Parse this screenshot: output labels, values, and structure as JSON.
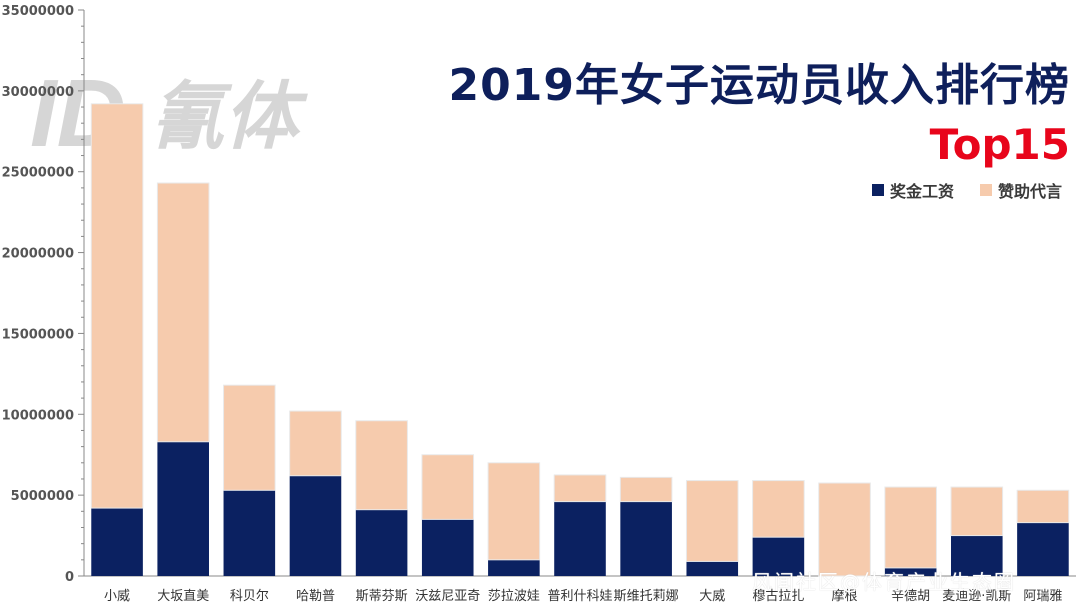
{
  "page": {
    "watermark_logo_text": "氰体",
    "source_watermark": "风闻社区@体育产业生态圈"
  },
  "legend": {
    "items": [
      {
        "label": "奖金工资",
        "color": "#0b2161"
      },
      {
        "label": "赞助代言",
        "color": "#f6cbad"
      }
    ]
  },
  "chart_data": {
    "type": "bar",
    "stacked": true,
    "title": "2019年女子运动员收入排行榜",
    "subtitle": "Top15",
    "xlabel": "",
    "ylabel": "",
    "ylim": [
      0,
      35000000
    ],
    "y_ticks": [
      "0",
      "5000000",
      "10000000",
      "15000000",
      "20000000",
      "25000000",
      "30000000",
      "35000000"
    ],
    "grid": false,
    "legend_position": "top-right",
    "categories": [
      "小威",
      "大坂直美",
      "科贝尔",
      "哈勒普",
      "斯蒂芬斯",
      "沃兹尼亚奇",
      "莎拉波娃",
      "普利什科娃",
      "斯维托莉娜",
      "大威",
      "穆古拉扎",
      "摩根",
      "辛德胡",
      "麦迪逊·凯斯",
      "阿瑞雅"
    ],
    "series": [
      {
        "name": "奖金工资",
        "color": "#0b2161",
        "values": [
          4200000,
          8300000,
          5300000,
          6200000,
          4100000,
          3500000,
          1000000,
          4600000,
          4600000,
          900000,
          2400000,
          0,
          500000,
          2500000,
          3300000
        ]
      },
      {
        "name": "赞助代言",
        "color": "#f6cbad",
        "values": [
          25000000,
          16000000,
          6500000,
          4000000,
          5500000,
          4000000,
          6000000,
          1650000,
          1500000,
          5000000,
          3500000,
          5750000,
          5000000,
          3000000,
          2000000
        ]
      }
    ]
  }
}
